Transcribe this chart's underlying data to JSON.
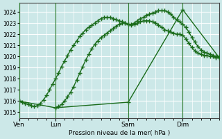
{
  "xlabel": "Pression niveau de la mer( hPa )",
  "bg_color": "#cce8e8",
  "grid_color": "#ffffff",
  "line_color": "#1a6b1a",
  "marker": "+",
  "markersize": 5,
  "linewidth": 1.0,
  "ylim": [
    1014.5,
    1024.8
  ],
  "yticks": [
    1015,
    1016,
    1017,
    1018,
    1019,
    1020,
    1021,
    1022,
    1023,
    1024
  ],
  "xtick_labels": [
    "Ven",
    "Lun",
    "Sam",
    "Dim"
  ],
  "xtick_positions": [
    0,
    24,
    72,
    108
  ],
  "vline_positions": [
    0,
    24,
    72,
    108
  ],
  "xlim": [
    0,
    132
  ],
  "series1_x": [
    0,
    2,
    4,
    6,
    8,
    10,
    12,
    14,
    16,
    18,
    20,
    22,
    24,
    26,
    28,
    30,
    32,
    34,
    36,
    38,
    40,
    42,
    44,
    46,
    48,
    50,
    52,
    54,
    56,
    58,
    60,
    62,
    64,
    66,
    68,
    70,
    72,
    74,
    76,
    78,
    80,
    82,
    84,
    86,
    88,
    90,
    92,
    94,
    96,
    98,
    100,
    102,
    104,
    106,
    108,
    110,
    112,
    114,
    116,
    118,
    120,
    122,
    124,
    126,
    128,
    130,
    132
  ],
  "series1_y": [
    1016.0,
    1015.9,
    1015.8,
    1015.7,
    1015.6,
    1015.5,
    1015.6,
    1015.8,
    1016.1,
    1016.5,
    1017.0,
    1017.5,
    1018.0,
    1018.5,
    1019.1,
    1019.6,
    1020.1,
    1020.6,
    1021.0,
    1021.4,
    1021.8,
    1022.1,
    1022.4,
    1022.6,
    1022.8,
    1023.0,
    1023.2,
    1023.4,
    1023.5,
    1023.5,
    1023.5,
    1023.4,
    1023.3,
    1023.2,
    1023.1,
    1023.0,
    1022.9,
    1022.9,
    1023.0,
    1023.2,
    1023.4,
    1023.5,
    1023.7,
    1023.8,
    1023.9,
    1024.0,
    1024.1,
    1024.1,
    1024.1,
    1024.0,
    1023.8,
    1023.5,
    1023.3,
    1023.1,
    1022.9,
    1022.6,
    1022.2,
    1021.7,
    1021.3,
    1020.9,
    1020.6,
    1020.4,
    1020.3,
    1020.2,
    1020.1,
    1020.0,
    1020.0
  ],
  "series2_x": [
    24,
    26,
    28,
    30,
    32,
    34,
    36,
    38,
    40,
    42,
    44,
    46,
    48,
    50,
    52,
    54,
    56,
    58,
    60,
    62,
    64,
    66,
    68,
    70,
    72,
    74,
    76,
    78,
    80,
    82,
    84,
    86,
    88,
    90,
    92,
    94,
    96,
    98,
    100,
    102,
    104,
    106,
    108,
    110,
    112,
    114,
    116,
    118,
    120,
    122,
    124,
    126,
    128,
    130,
    132
  ],
  "series2_y": [
    1015.4,
    1015.5,
    1015.7,
    1016.0,
    1016.4,
    1016.8,
    1017.3,
    1017.9,
    1018.5,
    1019.1,
    1019.7,
    1020.2,
    1020.7,
    1021.1,
    1021.4,
    1021.7,
    1021.9,
    1022.1,
    1022.3,
    1022.5,
    1022.7,
    1022.9,
    1023.0,
    1023.0,
    1022.9,
    1022.8,
    1022.9,
    1023.0,
    1023.1,
    1023.2,
    1023.2,
    1023.2,
    1023.1,
    1023.0,
    1022.8,
    1022.6,
    1022.4,
    1022.3,
    1022.2,
    1022.1,
    1022.0,
    1022.0,
    1021.9,
    1021.6,
    1021.2,
    1020.8,
    1020.5,
    1020.3,
    1020.2,
    1020.1,
    1020.1,
    1020.0,
    1020.0,
    1019.9,
    1019.9
  ],
  "series3_x": [
    0,
    24,
    72,
    108,
    132
  ],
  "series3_y": [
    1016.0,
    1015.4,
    1015.9,
    1024.2,
    1019.9
  ]
}
